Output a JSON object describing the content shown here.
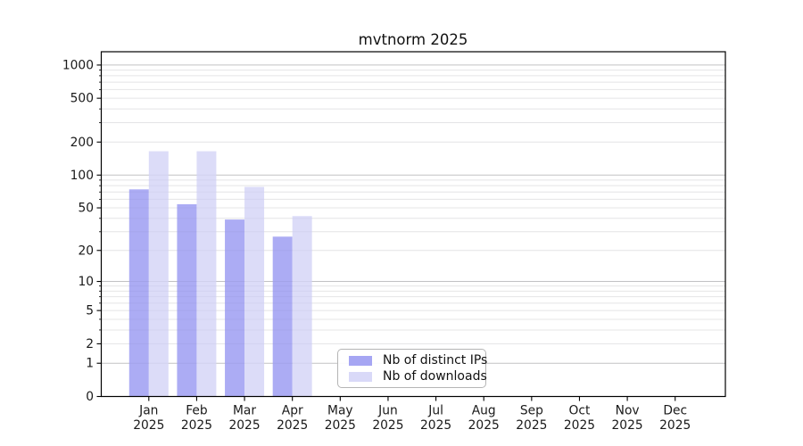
{
  "chart_data": {
    "type": "bar",
    "title": "mvtnorm 2025",
    "categories": [
      "Jan 2025",
      "Feb 2025",
      "Mar 2025",
      "Apr 2025",
      "May 2025",
      "Jun 2025",
      "Jul 2025",
      "Aug 2025",
      "Sep 2025",
      "Oct 2025",
      "Nov 2025",
      "Dec 2025"
    ],
    "series": [
      {
        "name": "Nb of distinct IPs",
        "color": "#a6a6f3",
        "alpha": 0.93,
        "values": [
          74,
          54,
          39,
          27,
          0,
          0,
          0,
          0,
          0,
          0,
          0,
          0
        ]
      },
      {
        "name": "Nb of downloads",
        "color": "#d9d9f8",
        "alpha": 0.93,
        "values": [
          165,
          165,
          78,
          42,
          0,
          0,
          0,
          0,
          0,
          0,
          0,
          0
        ]
      }
    ],
    "xlabel": "",
    "ylabel": "",
    "y_ticks": [
      0,
      1,
      2,
      5,
      10,
      20,
      50,
      100,
      200,
      500,
      1000
    ],
    "y_scale": "log10(value+1)",
    "ylim": [
      0,
      1320
    ],
    "grid": "horizontal only; major lines at 1,10,100,1000; minor lines at 2-9 per decade",
    "legend_position": "inside lower center-left",
    "colors": {
      "axis": "#000000",
      "tick_text": "#1a1a1a",
      "major_grid": "#c9c9c9",
      "minor_grid": "#ececec",
      "legend_border": "#b5b5b5",
      "legend_bg": "#ffffff",
      "background": "#ffffff"
    }
  }
}
